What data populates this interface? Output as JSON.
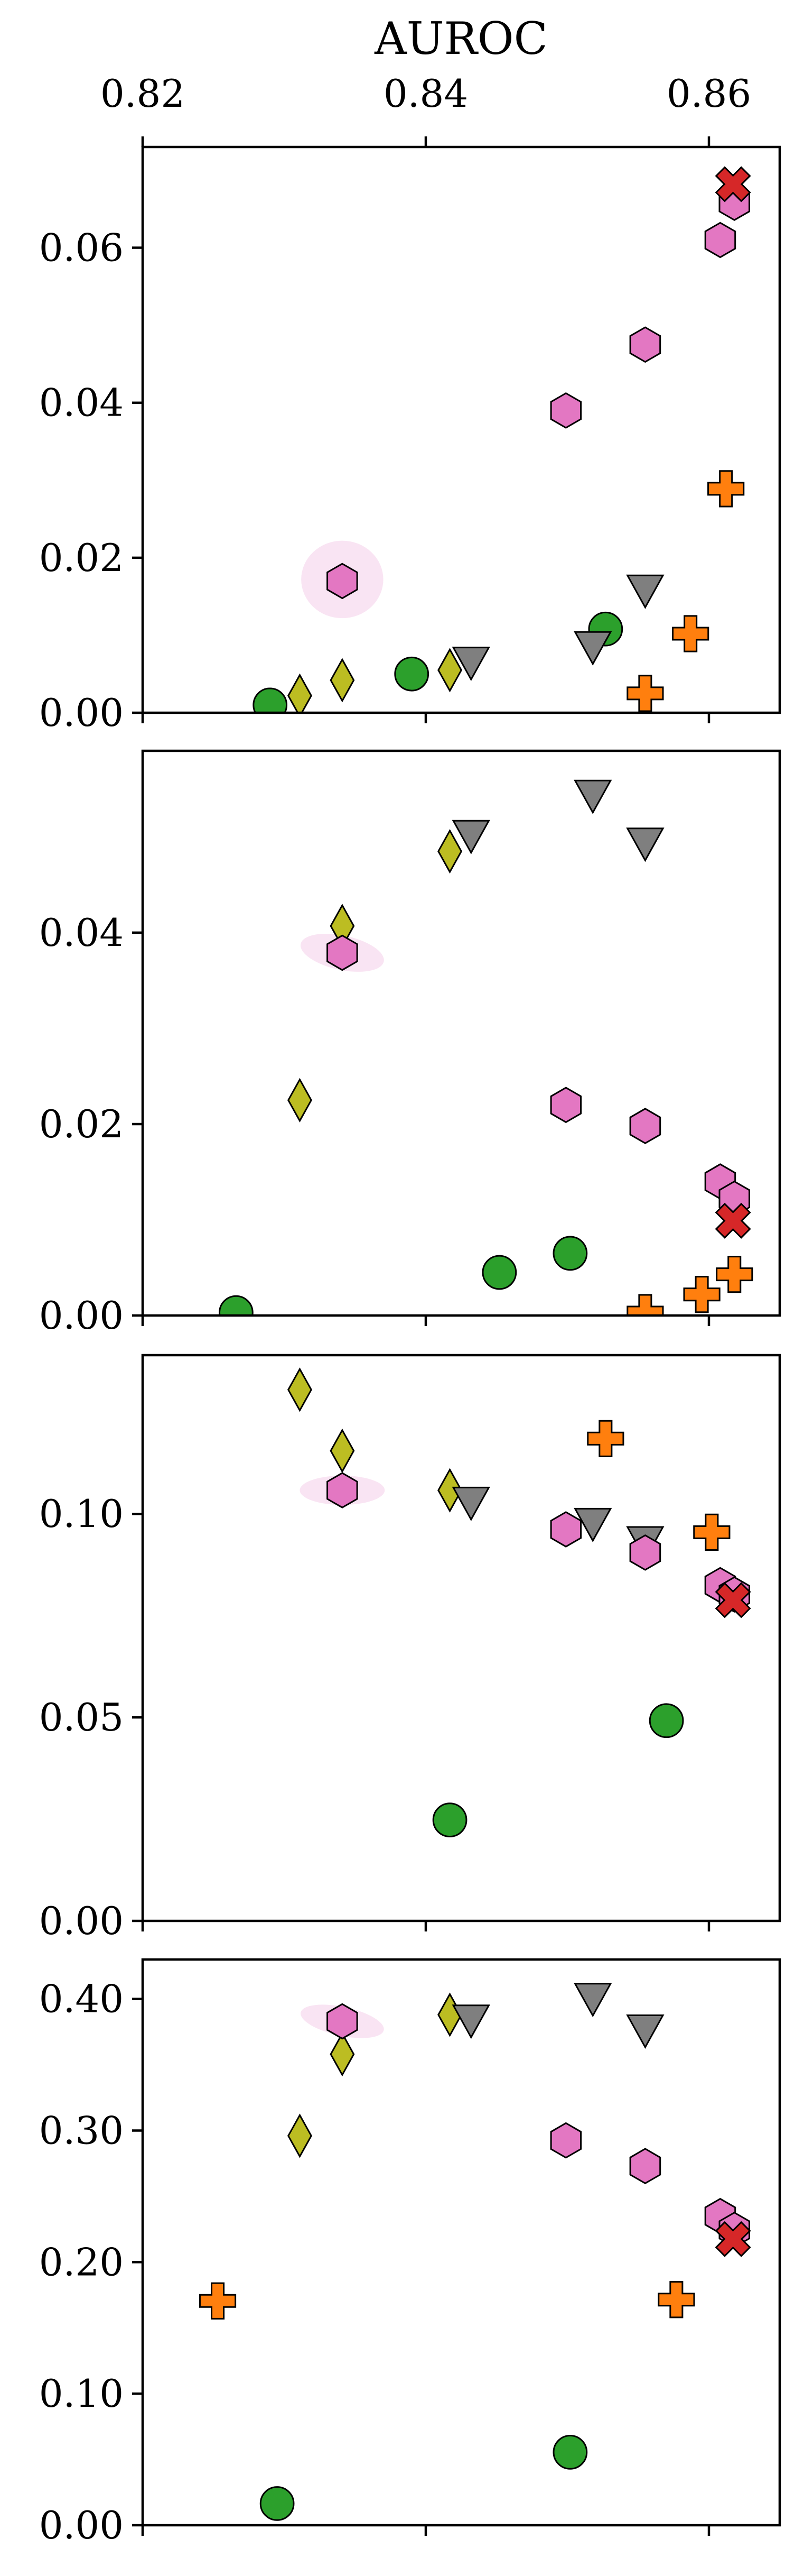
{
  "chart_data": {
    "type": "scatter",
    "xlabel": "AUROC",
    "xlim": [
      0.82,
      0.865
    ],
    "xticks": [
      0.82,
      0.84,
      0.86
    ],
    "xtick_labels": [
      "0.82",
      "0.84",
      "0.86"
    ],
    "grid": false,
    "legend": "none",
    "panels": [
      {
        "ylim": [
          0,
          0.073
        ],
        "yticks": [
          0,
          0.02,
          0.04,
          0.06
        ],
        "ytick_labels": [
          "0.00",
          "0.02",
          "0.04",
          "0.06"
        ],
        "series": [
          {
            "marker": "circle",
            "color": "#2ca02c",
            "points": [
              [
                0.829,
                0.001
              ],
              [
                0.839,
                0.005
              ],
              [
                0.8527,
                0.0108
              ]
            ]
          },
          {
            "marker": "diamond",
            "color": "#bcbd22",
            "points": [
              [
                0.8311,
                0.0022
              ],
              [
                0.8341,
                0.0042
              ],
              [
                0.8417,
                0.0055
              ]
            ]
          },
          {
            "marker": "triangle-down",
            "color": "#7f7f7f",
            "points": [
              [
                0.8432,
                0.0067
              ],
              [
                0.8518,
                0.0087
              ],
              [
                0.8555,
                0.016
              ]
            ]
          },
          {
            "marker": "hexagon",
            "color": "#e377c2",
            "points": [
              [
                0.8341,
                0.017
              ],
              [
                0.8499,
                0.039
              ],
              [
                0.8555,
                0.0475
              ],
              [
                0.8608,
                0.061
              ],
              [
                0.8618,
                0.0658
              ]
            ],
            "ellipse": {
              "x": 0.8341,
              "y": 0.0172,
              "rx": 0.0029,
              "ry": 0.005,
              "angle": 0
            }
          },
          {
            "marker": "plus",
            "color": "#ff7f0e",
            "points": [
              [
                0.8555,
                0.0025
              ],
              [
                0.8587,
                0.0102
              ],
              [
                0.8612,
                0.0289
              ]
            ]
          },
          {
            "marker": "x",
            "color": "#d62728",
            "points": [
              [
                0.8617,
                0.0682
              ]
            ]
          }
        ]
      },
      {
        "ylim": [
          0,
          0.059
        ],
        "yticks": [
          0,
          0.02,
          0.04
        ],
        "ytick_labels": [
          "0.00",
          "0.02",
          "0.04"
        ],
        "series": [
          {
            "marker": "circle",
            "color": "#2ca02c",
            "points": [
              [
                0.8266,
                0.0003
              ],
              [
                0.8452,
                0.0045
              ],
              [
                0.8502,
                0.0065
              ]
            ]
          },
          {
            "marker": "diamond",
            "color": "#bcbd22",
            "points": [
              [
                0.8311,
                0.0225
              ],
              [
                0.8341,
                0.0407
              ],
              [
                0.8417,
                0.0485
              ]
            ]
          },
          {
            "marker": "triangle-down",
            "color": "#7f7f7f",
            "points": [
              [
                0.8432,
                0.0503
              ],
              [
                0.8518,
                0.0545
              ],
              [
                0.8555,
                0.0495
              ]
            ]
          },
          {
            "marker": "hexagon",
            "color": "#e377c2",
            "points": [
              [
                0.8341,
                0.0379
              ],
              [
                0.8499,
                0.022
              ],
              [
                0.8555,
                0.0198
              ],
              [
                0.8608,
                0.014
              ],
              [
                0.8618,
                0.0122
              ]
            ],
            "ellipse": {
              "x": 0.8341,
              "y": 0.0379,
              "rx": 0.003,
              "ry": 0.0018,
              "angle": 12
            }
          },
          {
            "marker": "plus",
            "color": "#ff7f0e",
            "points": [
              [
                0.8555,
                0.0003
              ],
              [
                0.8595,
                0.0022
              ],
              [
                0.8618,
                0.0043
              ]
            ]
          },
          {
            "marker": "x",
            "color": "#d62728",
            "points": [
              [
                0.8617,
                0.0099
              ]
            ]
          }
        ]
      },
      {
        "ylim": [
          0,
          0.139
        ],
        "yticks": [
          0,
          0.05,
          0.1
        ],
        "ytick_labels": [
          "0.00",
          "0.05",
          "0.10"
        ],
        "series": [
          {
            "marker": "circle",
            "color": "#2ca02c",
            "points": [
              [
                0.8417,
                0.0248
              ],
              [
                0.857,
                0.0492
              ]
            ]
          },
          {
            "marker": "diamond",
            "color": "#bcbd22",
            "points": [
              [
                0.8311,
                0.1305
              ],
              [
                0.8341,
                0.1155
              ],
              [
                0.8417,
                0.1058
              ]
            ]
          },
          {
            "marker": "triangle-down",
            "color": "#7f7f7f",
            "points": [
              [
                0.8432,
                0.1032
              ],
              [
                0.8518,
                0.098
              ],
              [
                0.8555,
                0.0935
              ]
            ]
          },
          {
            "marker": "hexagon",
            "color": "#e377c2",
            "points": [
              [
                0.8341,
                0.1058
              ],
              [
                0.8499,
                0.0962
              ],
              [
                0.8555,
                0.0905
              ],
              [
                0.8608,
                0.0825
              ],
              [
                0.8618,
                0.0802
              ]
            ],
            "ellipse": {
              "x": 0.8341,
              "y": 0.1058,
              "rx": 0.003,
              "ry": 0.0036,
              "angle": 0
            }
          },
          {
            "marker": "plus",
            "color": "#ff7f0e",
            "points": [
              [
                0.8527,
                0.1185
              ],
              [
                0.8602,
                0.0955
              ]
            ]
          },
          {
            "marker": "x",
            "color": "#d62728",
            "points": [
              [
                0.8617,
                0.0788
              ]
            ]
          }
        ]
      },
      {
        "ylim": [
          0,
          0.43
        ],
        "yticks": [
          0,
          0.1,
          0.2,
          0.3,
          0.4
        ],
        "ytick_labels": [
          "0.00",
          "0.10",
          "0.20",
          "0.30",
          "0.40"
        ],
        "series": [
          {
            "marker": "circle",
            "color": "#2ca02c",
            "points": [
              [
                0.8295,
                0.0165
              ],
              [
                0.8502,
                0.0555
              ]
            ]
          },
          {
            "marker": "diamond",
            "color": "#bcbd22",
            "points": [
              [
                0.8311,
                0.296
              ],
              [
                0.8341,
                0.358
              ],
              [
                0.8417,
                0.388
              ]
            ]
          },
          {
            "marker": "triangle-down",
            "color": "#7f7f7f",
            "points": [
              [
                0.8432,
                0.385
              ],
              [
                0.8518,
                0.4015
              ],
              [
                0.8555,
                0.3775
              ]
            ]
          },
          {
            "marker": "hexagon",
            "color": "#e377c2",
            "points": [
              [
                0.8341,
                0.383
              ],
              [
                0.8499,
                0.2925
              ],
              [
                0.8555,
                0.273
              ],
              [
                0.8608,
                0.235
              ],
              [
                0.8618,
                0.2245
              ]
            ],
            "ellipse": {
              "x": 0.8341,
              "y": 0.383,
              "rx": 0.003,
              "ry": 0.011,
              "angle": 12
            }
          },
          {
            "marker": "plus",
            "color": "#ff7f0e",
            "points": [
              [
                0.8253,
                0.1705
              ],
              [
                0.8577,
                0.1715
              ]
            ]
          },
          {
            "marker": "x",
            "color": "#d62728",
            "points": [
              [
                0.8617,
                0.2175
              ]
            ]
          }
        ]
      }
    ]
  }
}
